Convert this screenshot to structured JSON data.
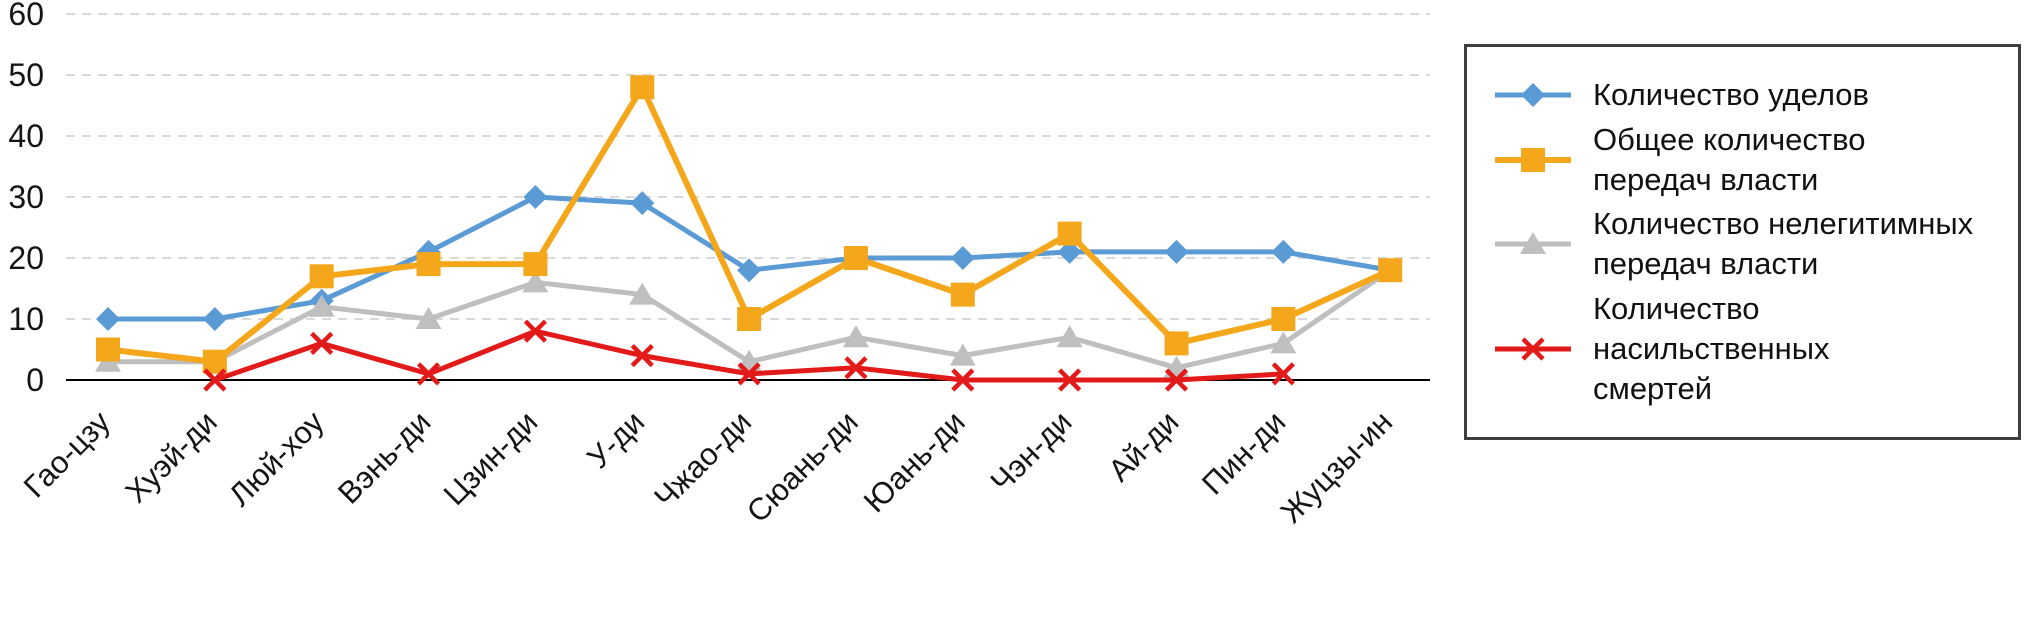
{
  "chart_data": {
    "type": "line",
    "categories": [
      "Гао-цзу",
      "Хуэй-ди",
      "Люй-хоу",
      "Вэнь-ди",
      "Цзин-ди",
      "У-ди",
      "Чжао-ди",
      "Сюань-ди",
      "Юань-ди",
      "Чэн-ди",
      "Ай-ди",
      "Пин-ди",
      "Жуцзы-ин"
    ],
    "series": [
      {
        "name": "Количество уделов",
        "legend_lines": [
          "Количество уделов"
        ],
        "color": "#5B9BD5",
        "marker": "diamond",
        "values": [
          10,
          10,
          13,
          21,
          30,
          29,
          18,
          20,
          20,
          21,
          21,
          21,
          18
        ]
      },
      {
        "name": "Общее количество передач власти",
        "legend_lines": [
          "Общее количество",
          "передач власти"
        ],
        "color": "#F5A71C",
        "marker": "square",
        "values": [
          5,
          3,
          17,
          19,
          19,
          48,
          10,
          20,
          14,
          24,
          6,
          10,
          18
        ]
      },
      {
        "name": "Количество нелегитимных передач власти",
        "legend_lines": [
          "Количество нелегитимных",
          "передач власти"
        ],
        "color": "#BFBFBF",
        "marker": "triangle",
        "values": [
          3,
          3,
          12,
          10,
          16,
          14,
          3,
          7,
          4,
          7,
          2,
          6,
          18
        ]
      },
      {
        "name": "Количество насильственных смертей",
        "legend_lines": [
          "Количество насильственных",
          "смертей"
        ],
        "color": "#E21A1A",
        "marker": "x",
        "values": [
          null,
          0,
          6,
          1,
          8,
          4,
          1,
          2,
          0,
          0,
          0,
          1,
          null
        ]
      }
    ],
    "title": "",
    "xlabel": "",
    "ylabel": "",
    "ylim": [
      0,
      60
    ],
    "yticks": [
      0,
      10,
      20,
      30,
      40,
      50,
      60
    ],
    "grid": true,
    "grid_style": "dashed",
    "legend_position": "right",
    "axis_color": "#000000",
    "grid_color": "#D9D9D9"
  }
}
